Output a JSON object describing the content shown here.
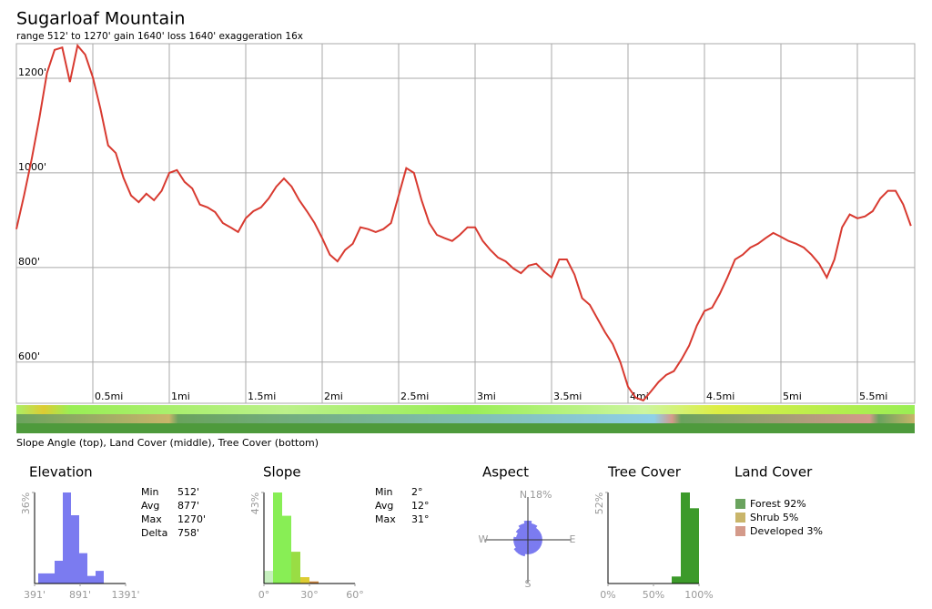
{
  "title": "Sugarloaf Mountain",
  "subtitle": "range 512' to 1270'  gain 1640'  loss 1640'  exaggeration 16x",
  "band_caption": "Slope Angle (top), Land Cover (middle), Tree Cover (bottom)",
  "chart_data": [
    {
      "type": "line",
      "color": "#d83a30",
      "x": [
        0,
        0.05,
        0.1,
        0.15,
        0.2,
        0.25,
        0.3,
        0.35,
        0.4,
        0.45,
        0.5,
        0.55,
        0.6,
        0.65,
        0.7,
        0.75,
        0.8,
        0.85,
        0.9,
        0.95,
        1.0,
        1.05,
        1.1,
        1.15,
        1.2,
        1.25,
        1.3,
        1.35,
        1.4,
        1.45,
        1.5,
        1.55,
        1.6,
        1.65,
        1.7,
        1.75,
        1.8,
        1.85,
        1.9,
        1.95,
        2.0,
        2.05,
        2.1,
        2.15,
        2.2,
        2.25,
        2.3,
        2.35,
        2.4,
        2.45,
        2.5,
        2.55,
        2.6,
        2.65,
        2.7,
        2.75,
        2.8,
        2.85,
        2.9,
        2.95,
        3.0,
        3.05,
        3.1,
        3.15,
        3.2,
        3.25,
        3.3,
        3.35,
        3.4,
        3.45,
        3.5,
        3.55,
        3.6,
        3.65,
        3.7,
        3.75,
        3.8,
        3.85,
        3.9,
        3.95,
        4.0,
        4.05,
        4.1,
        4.15,
        4.2,
        4.25,
        4.3,
        4.35,
        4.4,
        4.45,
        4.5,
        4.55,
        4.6,
        4.65,
        4.7,
        4.75,
        4.8,
        4.85,
        4.9,
        4.95,
        5.0,
        5.05,
        5.1,
        5.15,
        5.2,
        5.25,
        5.3,
        5.35,
        5.4,
        5.45,
        5.5,
        5.55,
        5.6,
        5.65,
        5.7,
        5.75,
        5.8,
        5.85
      ],
      "values": [
        881,
        952,
        1029,
        1115,
        1211,
        1260,
        1265,
        1192,
        1269,
        1250,
        1202,
        1135,
        1058,
        1042,
        990,
        952,
        938,
        956,
        942,
        962,
        1000,
        1006,
        981,
        967,
        933,
        927,
        917,
        894,
        885,
        875,
        904,
        919,
        927,
        946,
        971,
        988,
        971,
        942,
        919,
        894,
        862,
        827,
        813,
        837,
        850,
        885,
        881,
        875,
        881,
        894,
        952,
        1010,
        1000,
        942,
        894,
        869,
        862,
        856,
        869,
        885,
        885,
        856,
        837,
        821,
        813,
        798,
        788,
        804,
        808,
        792,
        779,
        817,
        817,
        785,
        735,
        721,
        692,
        663,
        638,
        600,
        548,
        525,
        519,
        538,
        558,
        573,
        581,
        606,
        635,
        677,
        708,
        715,
        744,
        779,
        817,
        827,
        842,
        850,
        862,
        873,
        865,
        856,
        850,
        842,
        827,
        808,
        779,
        817,
        885,
        912,
        904,
        908,
        919,
        946,
        962,
        962,
        933,
        888
      ],
      "xlim": [
        0,
        5.875
      ],
      "ylim": [
        513,
        1273
      ],
      "xticks": [
        {
          "value": 0.5,
          "label": "0.5mi"
        },
        {
          "value": 1,
          "label": "1mi"
        },
        {
          "value": 1.5,
          "label": "1.5mi"
        },
        {
          "value": 2,
          "label": "2mi"
        },
        {
          "value": 2.5,
          "label": "2.5mi"
        },
        {
          "value": 3,
          "label": "3mi"
        },
        {
          "value": 3.5,
          "label": "3.5mi"
        },
        {
          "value": 4,
          "label": "4mi"
        },
        {
          "value": 4.5,
          "label": "4.5mi"
        },
        {
          "value": 5,
          "label": "5mi"
        },
        {
          "value": 5.5,
          "label": "5.5mi"
        }
      ],
      "yticks": [
        {
          "value": 600,
          "label": "600'"
        },
        {
          "value": 800,
          "label": "800'"
        },
        {
          "value": 1000,
          "label": "1000'"
        },
        {
          "value": 1200,
          "label": "1200'"
        }
      ],
      "grid": true
    },
    {
      "type": "histogram",
      "title": "Elevation",
      "color": "#7b7bf0",
      "bins": [
        431,
        521,
        611,
        701,
        791,
        881,
        971,
        1061,
        1151
      ],
      "values": [
        4,
        4,
        9,
        36,
        27,
        12,
        3,
        5
      ],
      "xlim": [
        391,
        1391
      ],
      "ylim": [
        0,
        36
      ],
      "xticks": [
        {
          "value": 391,
          "label": "391'"
        },
        {
          "value": 891,
          "label": "891'"
        },
        {
          "value": 1391,
          "label": "1391'"
        }
      ],
      "yticks": [
        {
          "value": 36,
          "label": "36%"
        }
      ]
    },
    {
      "type": "histogram",
      "title": "Slope",
      "colors": [
        "#c6efbe",
        "#88ee55",
        "#88ee55",
        "#99dd44",
        "#ddcc33",
        "#cc8844"
      ],
      "bins": [
        0,
        6,
        12,
        18,
        24,
        30,
        36
      ],
      "values": [
        6,
        43,
        32,
        15,
        3,
        1
      ],
      "xlim": [
        0,
        60
      ],
      "ylim": [
        0,
        43
      ],
      "xticks": [
        {
          "value": 0,
          "label": "0°"
        },
        {
          "value": 30,
          "label": "30°"
        },
        {
          "value": 60,
          "label": "60°"
        }
      ],
      "yticks": [
        {
          "value": 43,
          "label": "43%"
        }
      ]
    },
    {
      "type": "rose",
      "title": "Aspect",
      "color": "#7b7bf0",
      "categories": [
        "N",
        null,
        null,
        null,
        "E",
        null,
        null,
        null,
        "S",
        null,
        null,
        null,
        "W",
        null,
        null,
        null
      ],
      "values": [
        8,
        7,
        6,
        6,
        6,
        6,
        6,
        6,
        6,
        7,
        7,
        6,
        6,
        5,
        6,
        7
      ],
      "rlim": [
        0,
        18
      ],
      "rticks": [
        {
          "value": 18,
          "label": "18%"
        }
      ]
    },
    {
      "type": "histogram",
      "title": "Tree Cover",
      "color": "#3c9a2a",
      "bins": [
        70,
        80,
        90,
        100
      ],
      "values": [
        4,
        52,
        43
      ],
      "xlim": [
        0,
        100
      ],
      "ylim": [
        0,
        52
      ],
      "xticks": [
        {
          "value": 0,
          "label": "0%"
        },
        {
          "value": 50,
          "label": "50%"
        },
        {
          "value": 100,
          "label": "100%"
        }
      ],
      "yticks": [
        {
          "value": 52,
          "label": "52%"
        }
      ]
    }
  ],
  "stats": {
    "elevation": [
      [
        "Min",
        "512'"
      ],
      [
        "Avg",
        "877'"
      ],
      [
        "Max",
        "1270'"
      ],
      [
        "Delta",
        "758'"
      ]
    ],
    "slope": [
      [
        "Min",
        "2°"
      ],
      [
        "Avg",
        "12°"
      ],
      [
        "Max",
        "31°"
      ]
    ]
  },
  "land_cover": {
    "title": "Land Cover",
    "items": [
      {
        "label": "Forest 92%",
        "value": 92,
        "color": "#6aa35e"
      },
      {
        "label": "Shrub 5%",
        "value": 5,
        "color": "#c9b56a"
      },
      {
        "label": "Developed 3%",
        "value": 3,
        "color": "#d49a8a"
      }
    ]
  }
}
